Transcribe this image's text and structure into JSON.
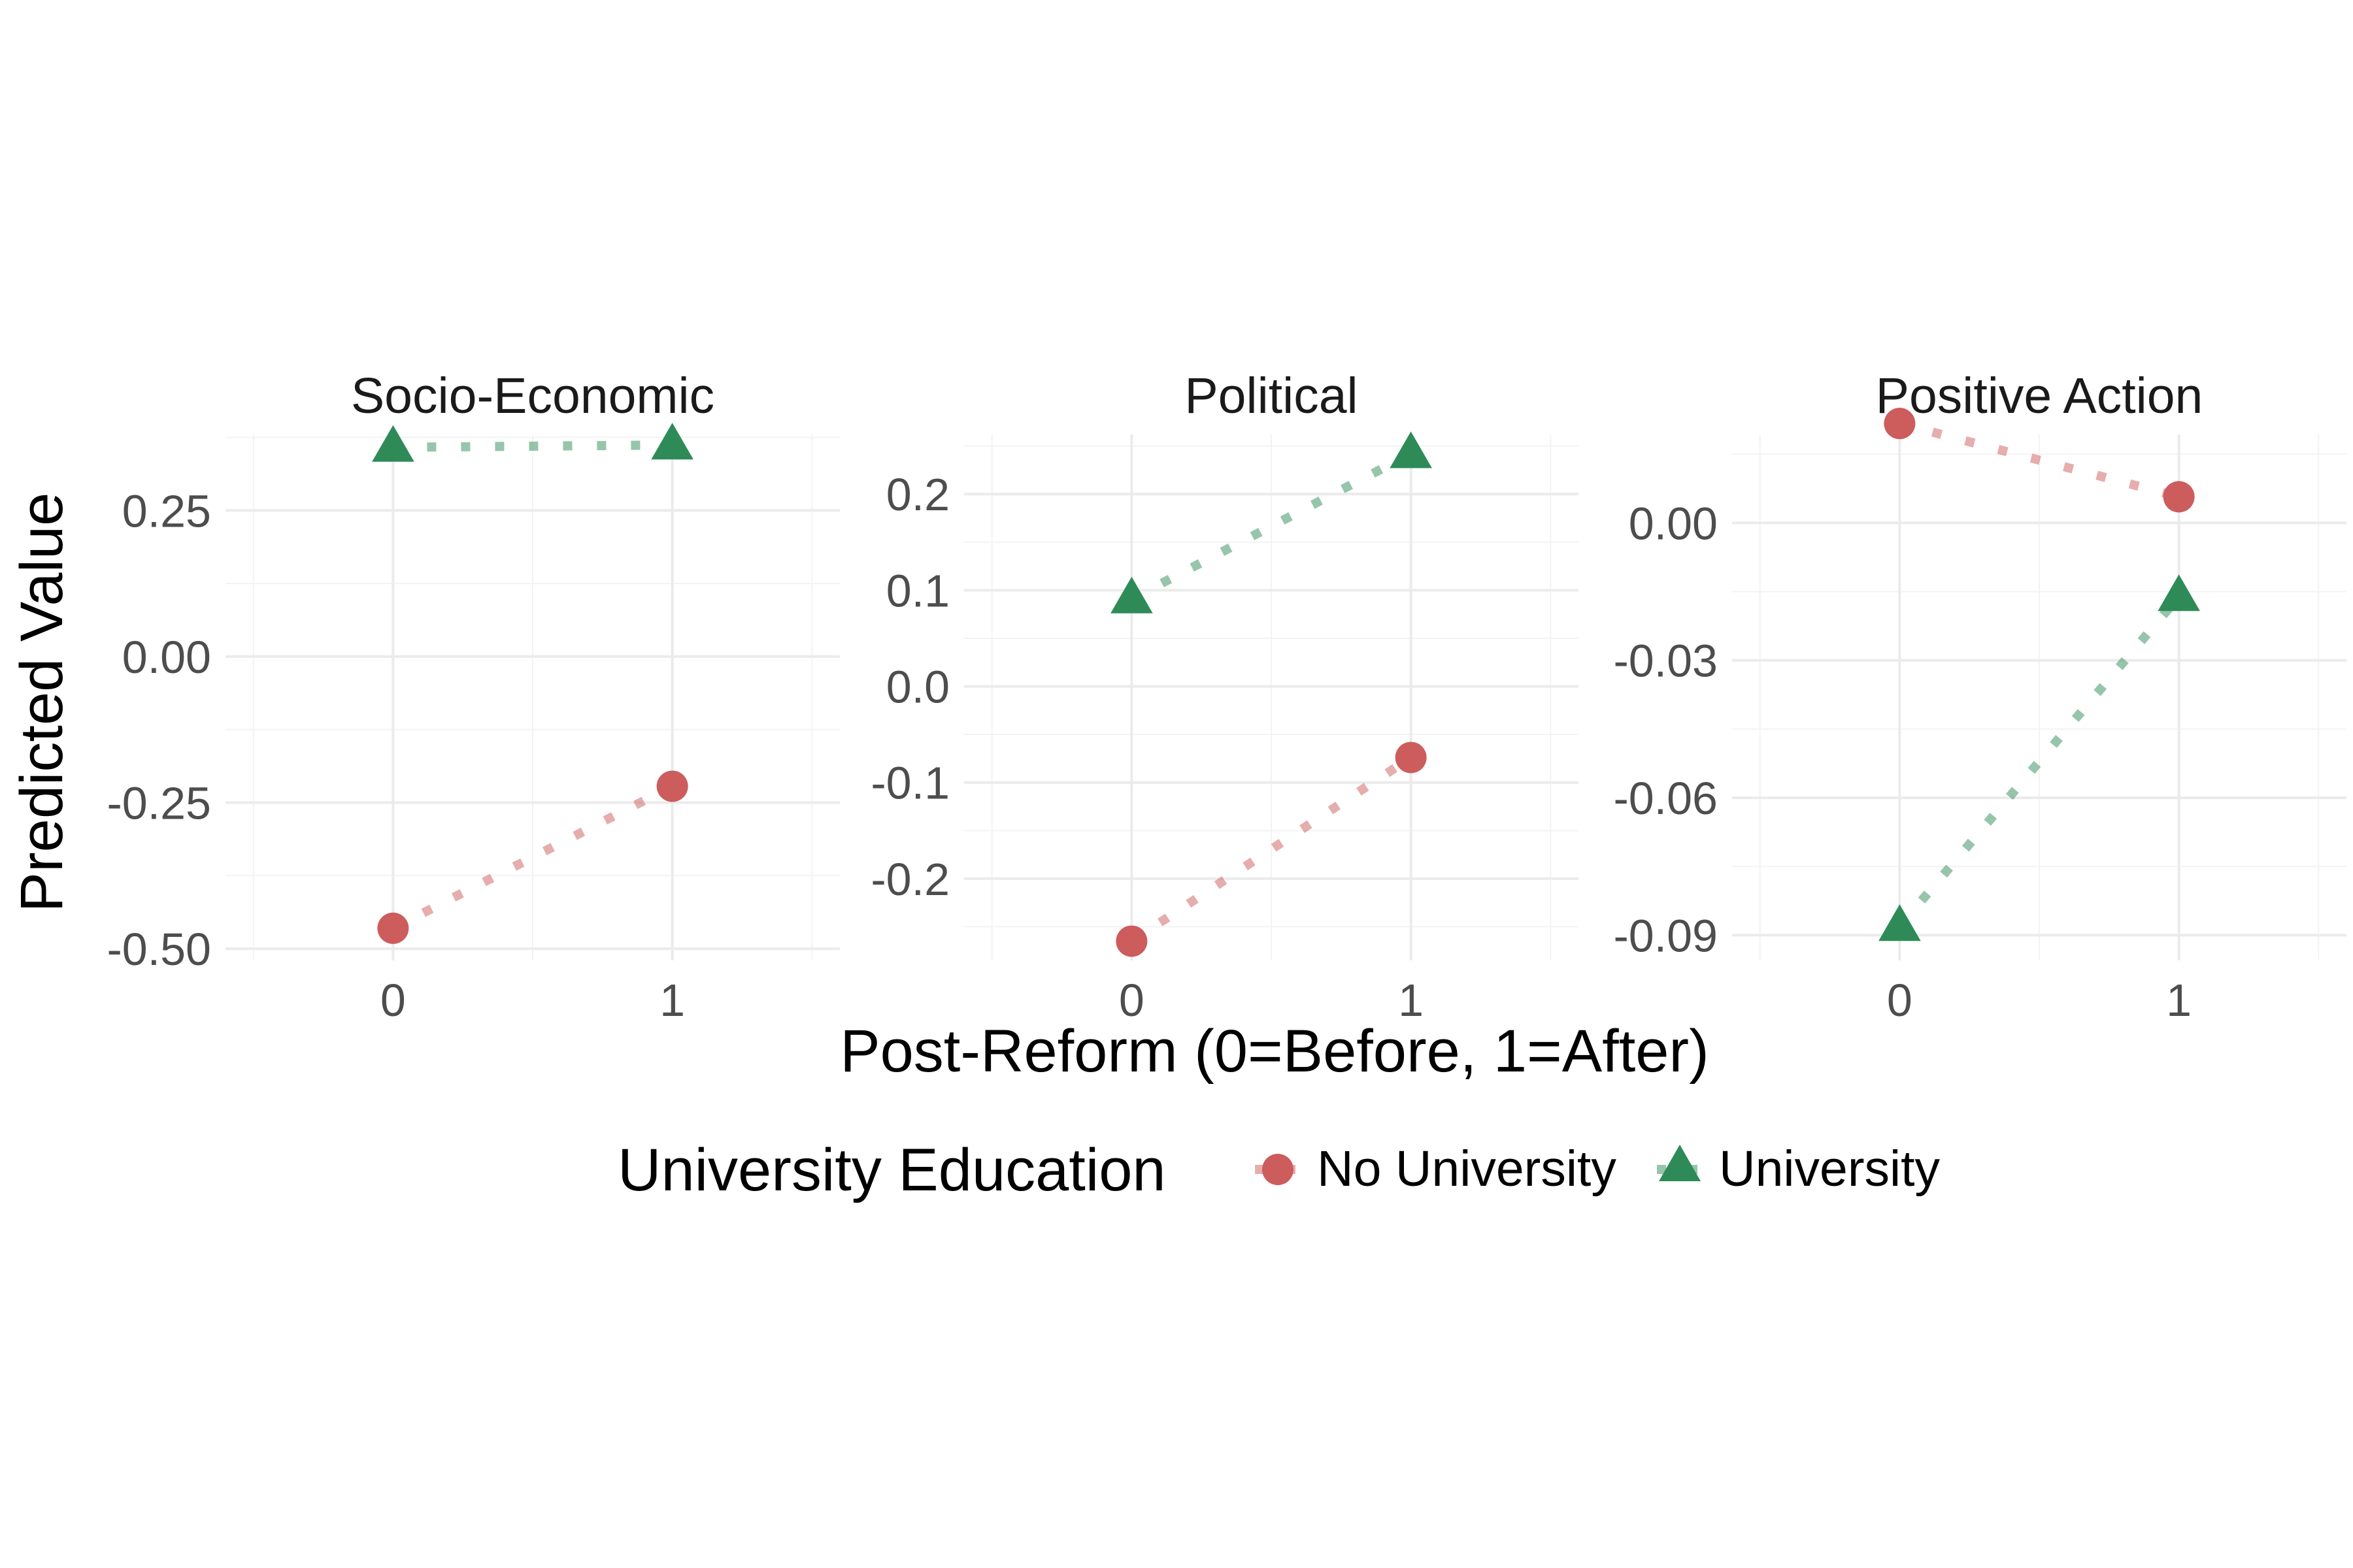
{
  "chart_data": {
    "type": "line",
    "xlabel": "Post-Reform (0=Before, 1=After)",
    "ylabel": "Predicted Value",
    "legend": {
      "title": "University Education",
      "position": "bottom",
      "entries": [
        {
          "label": "No University",
          "color": "#cd5c5c",
          "shape": "circle"
        },
        {
          "label": "University",
          "color": "#2e8b57",
          "shape": "triangle"
        }
      ]
    },
    "grid": true,
    "line_style": "dotted",
    "panels": [
      {
        "title": "Socio-Economic",
        "xlim": [
          -0.6,
          1.6
        ],
        "x_ticks": [
          0,
          1
        ],
        "ylim": [
          -0.52,
          0.38
        ],
        "y_ticks": [
          0.25,
          0.0,
          -0.25,
          -0.5
        ],
        "y_tick_labels": [
          "0.25",
          "0.00",
          "-0.25",
          "-0.50"
        ],
        "series": [
          {
            "name": "No University",
            "x": [
              0,
              1
            ],
            "y": [
              -0.465,
              -0.222
            ]
          },
          {
            "name": "University",
            "x": [
              0,
              1
            ],
            "y": [
              0.358,
              0.362
            ]
          }
        ]
      },
      {
        "title": "Political",
        "xlim": [
          -0.6,
          1.6
        ],
        "x_ticks": [
          0,
          1
        ],
        "ylim": [
          -0.285,
          0.262
        ],
        "y_ticks": [
          0.2,
          0.1,
          0.0,
          -0.1,
          -0.2
        ],
        "y_tick_labels": [
          "0.2",
          "0.1",
          "0.0",
          "-0.1",
          "-0.2"
        ],
        "series": [
          {
            "name": "No University",
            "x": [
              0,
              1
            ],
            "y": [
              -0.265,
              -0.074
            ]
          },
          {
            "name": "University",
            "x": [
              0,
              1
            ],
            "y": [
              0.091,
              0.242
            ]
          }
        ]
      },
      {
        "title": "Positive Action",
        "xlim": [
          -0.6,
          1.6
        ],
        "x_ticks": [
          0,
          1
        ],
        "ylim": [
          -0.0955,
          0.0193
        ],
        "y_ticks": [
          0.0,
          -0.03,
          -0.06,
          -0.09
        ],
        "y_tick_labels": [
          "0.00",
          "-0.03",
          "-0.06",
          "-0.09"
        ],
        "series": [
          {
            "name": "No University",
            "x": [
              0,
              1
            ],
            "y": [
              0.0217,
              0.0057
            ]
          },
          {
            "name": "University",
            "x": [
              0,
              1
            ],
            "y": [
              -0.0881,
              -0.0161
            ]
          }
        ]
      }
    ]
  }
}
